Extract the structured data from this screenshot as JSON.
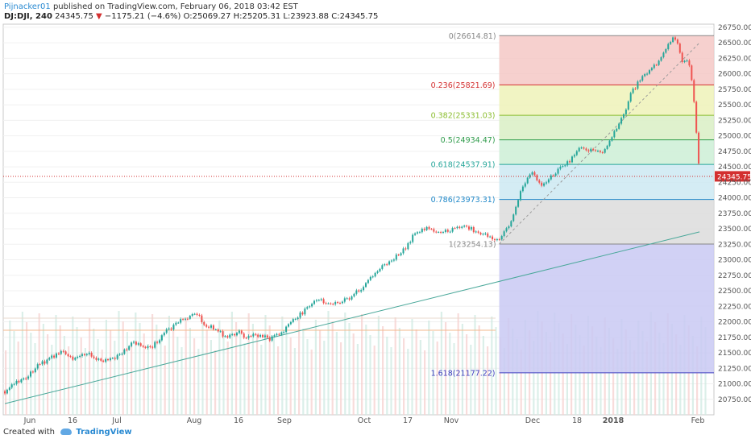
{
  "header": {
    "author": "Pijnacker01",
    "published_text": "published on TradingView.com, February 06, 2018 03:42 EST",
    "symbol": "DJ:DJI, 240",
    "last": "24345.75",
    "down_marker": "▼",
    "change": "−1175.21 (−4.6%)",
    "o_label": "O:",
    "o_value": "25069.27",
    "h_label": "H:",
    "h_value": "25205.31",
    "l_label": "L:",
    "l_value": "23923.88",
    "c_label": "C:",
    "c_value": "24345.75"
  },
  "footer": {
    "created_with": "Created with",
    "brand": "TradingView"
  },
  "chart_data": {
    "type": "candlestick",
    "ylim": [
      20500,
      26800
    ],
    "y_ticks": [
      20750,
      21000,
      21250,
      21500,
      21750,
      22000,
      22250,
      22500,
      22750,
      23000,
      23250,
      23500,
      23750,
      24000,
      24250,
      24500,
      24750,
      25000,
      25250,
      25500,
      25750,
      26000,
      26250,
      26500,
      26750
    ],
    "y_tick_labels": [
      "20750.00",
      "21000.00",
      "21250.00",
      "21500.00",
      "21750.00",
      "22000.00",
      "22250.00",
      "22500.00",
      "22750.00",
      "23000.00",
      "23250.00",
      "23500.00",
      "23750.00",
      "24000.00",
      "24250.00",
      "24500.00",
      "24750.00",
      "25000.00",
      "25250.00",
      "25500.00",
      "25750.00",
      "26000.00",
      "26250.00",
      "26500.00",
      "26750.00"
    ],
    "x_tick_labels": [
      "Jun",
      "16",
      "Jul",
      "Aug",
      "16",
      "Sep",
      "Oct",
      "17",
      "Nov",
      "Dec",
      "18",
      "2018",
      "Feb"
    ],
    "price_path": [
      [
        0,
        20880
      ],
      [
        5,
        21120
      ],
      [
        8,
        21300
      ],
      [
        13,
        21520
      ],
      [
        16,
        21400
      ],
      [
        20,
        21480
      ],
      [
        23,
        21350
      ],
      [
        26,
        21430
      ],
      [
        30,
        21660
      ],
      [
        34,
        21560
      ],
      [
        38,
        21850
      ],
      [
        42,
        22050
      ],
      [
        45,
        22140
      ],
      [
        47,
        21950
      ],
      [
        50,
        21860
      ],
      [
        52,
        21750
      ],
      [
        55,
        21830
      ],
      [
        57,
        21730
      ],
      [
        59,
        21800
      ],
      [
        62,
        21720
      ],
      [
        65,
        21830
      ],
      [
        67,
        22000
      ],
      [
        70,
        22150
      ],
      [
        73,
        22380
      ],
      [
        77,
        22270
      ],
      [
        80,
        22350
      ],
      [
        83,
        22500
      ],
      [
        85,
        22650
      ],
      [
        87,
        22800
      ],
      [
        90,
        22970
      ],
      [
        93,
        23100
      ],
      [
        96,
        23400
      ],
      [
        99,
        23530
      ],
      [
        102,
        23440
      ],
      [
        105,
        23490
      ],
      [
        108,
        23560
      ],
      [
        111,
        23420
      ],
      [
        114,
        23380
      ],
      [
        116,
        23300
      ],
      [
        117.5,
        23480
      ],
      [
        119,
        23650
      ],
      [
        121.5,
        24200
      ],
      [
        123.5,
        24420
      ],
      [
        125.5,
        24200
      ],
      [
        127.5,
        24300
      ],
      [
        130,
        24450
      ],
      [
        132.5,
        24600
      ],
      [
        134.5,
        24800
      ],
      [
        137,
        24780
      ],
      [
        140,
        24720
      ],
      [
        141.5,
        24850
      ],
      [
        143,
        25050
      ],
      [
        145,
        25300
      ],
      [
        147,
        25700
      ],
      [
        149,
        25900
      ],
      [
        151,
        26050
      ],
      [
        153,
        26150
      ],
      [
        155,
        26380
      ],
      [
        157,
        26614
      ],
      [
        158,
        26450
      ],
      [
        159,
        26150
      ],
      [
        160,
        26250
      ],
      [
        161,
        26000
      ],
      [
        161.7,
        25520
      ],
      [
        162.4,
        24900
      ],
      [
        163,
        24350
      ]
    ],
    "fib_levels": [
      {
        "ratio": 0,
        "price": 26614.81,
        "label": "0(26614.81)",
        "color": "#888888"
      },
      {
        "ratio": 0.236,
        "price": 25821.69,
        "label": "0.236(25821.69)",
        "color": "#d32f2f"
      },
      {
        "ratio": 0.382,
        "price": 25331.03,
        "label": "0.382(25331.03)",
        "color": "#8bbd2f"
      },
      {
        "ratio": 0.5,
        "price": 24934.47,
        "label": "0.5(24934.47)",
        "color": "#2e9b4a"
      },
      {
        "ratio": 0.618,
        "price": 24537.91,
        "label": "0.618(24537.91)",
        "color": "#26a69a"
      },
      {
        "ratio": 0.786,
        "price": 23973.31,
        "label": "0.786(23973.31)",
        "color": "#1f88c9"
      },
      {
        "ratio": 1,
        "price": 23254.13,
        "label": "1(23254.13)",
        "color": "#888888"
      },
      {
        "ratio": 1.618,
        "price": 21177.22,
        "label": "1.618(21177.22)",
        "color": "#3f3fbf"
      }
    ],
    "fib_bands": [
      "#f4c8c6",
      "#eef2b8",
      "#d9efc4",
      "#cdeed6",
      "#cde9f2",
      "#dcdcdc",
      "#c9c9f3"
    ],
    "trend_line": {
      "from": [
        0,
        20680
      ],
      "to": [
        163,
        23450
      ],
      "color": "#4aa89a"
    },
    "fib_trend": {
      "from": [
        116,
        23254.13
      ],
      "to": [
        163,
        26500
      ]
    },
    "last_price": 24345.75,
    "last_price_label": "24345.75",
    "price_line_color": "#d32f2f",
    "up_color": "#26a69a",
    "down_color": "#ef5350"
  }
}
